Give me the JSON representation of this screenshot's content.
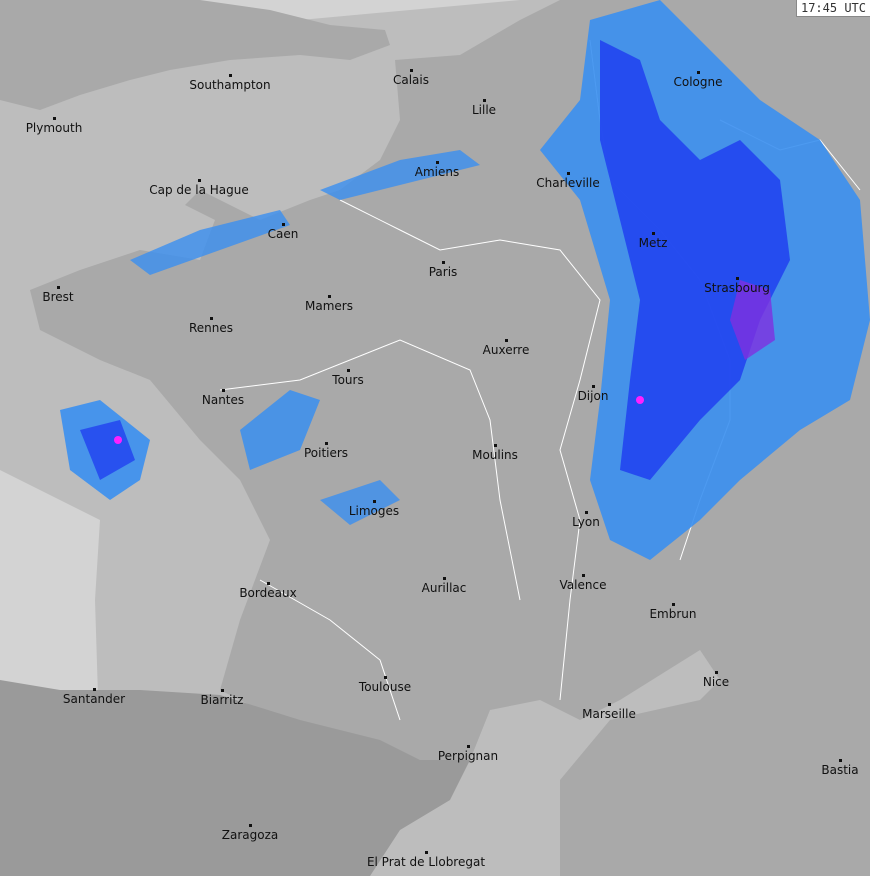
{
  "timestamp": "17:45 UTC",
  "colors": {
    "sea": "#d3d3d3",
    "land": "#a9a9a9",
    "radar_coverage": "#b8b8b8",
    "rain_light": "#3a8ff0",
    "rain_moderate": "#2040f0",
    "rain_heavy": "#8030e0",
    "rain_extreme": "#ff20ff"
  },
  "cities": [
    {
      "name": "Southampton"
    },
    {
      "name": "Calais"
    },
    {
      "name": "Lille"
    },
    {
      "name": "Plymouth"
    },
    {
      "name": "Cologne"
    },
    {
      "name": "Amiens"
    },
    {
      "name": "Charleville"
    },
    {
      "name": "Cap de la Hague"
    },
    {
      "name": "Caen"
    },
    {
      "name": "Paris"
    },
    {
      "name": "Metz"
    },
    {
      "name": "Brest"
    },
    {
      "name": "Mamers"
    },
    {
      "name": "Strasbourg"
    },
    {
      "name": "Rennes"
    },
    {
      "name": "Auxerre"
    },
    {
      "name": "Tours"
    },
    {
      "name": "Dijon"
    },
    {
      "name": "Nantes"
    },
    {
      "name": "Poitiers"
    },
    {
      "name": "Moulins"
    },
    {
      "name": "Limoges"
    },
    {
      "name": "Lyon"
    },
    {
      "name": "Valence"
    },
    {
      "name": "Bordeaux"
    },
    {
      "name": "Aurillac"
    },
    {
      "name": "Embrun"
    },
    {
      "name": "Nice"
    },
    {
      "name": "Santander"
    },
    {
      "name": "Biarritz"
    },
    {
      "name": "Toulouse"
    },
    {
      "name": "Marseille"
    },
    {
      "name": "Perpignan"
    },
    {
      "name": "Bastia"
    },
    {
      "name": "Zaragoza"
    },
    {
      "name": "El Prat de Llobregat"
    }
  ]
}
